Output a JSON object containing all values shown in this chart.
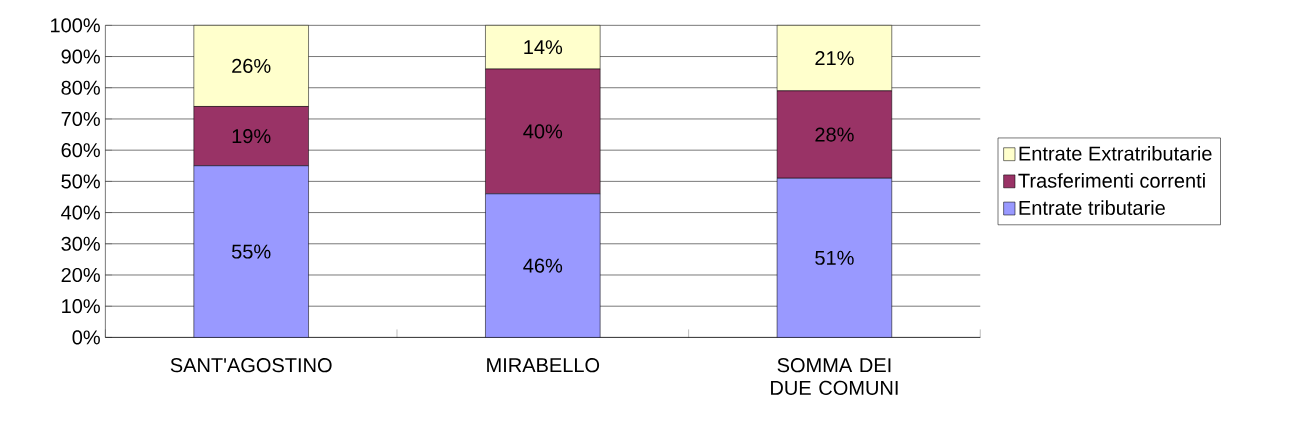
{
  "chart_data": {
    "type": "bar",
    "stacked": true,
    "categories": [
      "SANT'AGOSTINO",
      "MIRABELLO",
      "SOMMA DEI DUE COMUNI"
    ],
    "series": [
      {
        "name": "Entrate tributarie",
        "color": "#9999ff",
        "values": [
          55,
          46,
          51
        ],
        "value_labels": [
          "55%",
          "46%",
          "51%"
        ]
      },
      {
        "name": "Trasferimenti correnti",
        "color": "#993366",
        "values": [
          19,
          40,
          28
        ],
        "value_labels": [
          "19%",
          "40%",
          "28%"
        ]
      },
      {
        "name": "Entrate Extratributarie",
        "color": "#ffffcc",
        "values": [
          26,
          14,
          21
        ],
        "value_labels": [
          "26%",
          "14%",
          "21%"
        ]
      }
    ],
    "ylim": [
      0,
      100
    ],
    "yticks": [
      {
        "value": 0,
        "label": "0%"
      },
      {
        "value": 10,
        "label": "10%"
      },
      {
        "value": 20,
        "label": "20%"
      },
      {
        "value": 30,
        "label": "30%"
      },
      {
        "value": 40,
        "label": "40%"
      },
      {
        "value": 50,
        "label": "50%"
      },
      {
        "value": 60,
        "label": "60%"
      },
      {
        "value": 70,
        "label": "70%"
      },
      {
        "value": 80,
        "label": "80%"
      },
      {
        "value": 90,
        "label": "90%"
      },
      {
        "value": 100,
        "label": "100%"
      }
    ],
    "grid": "y",
    "legend": "right"
  }
}
